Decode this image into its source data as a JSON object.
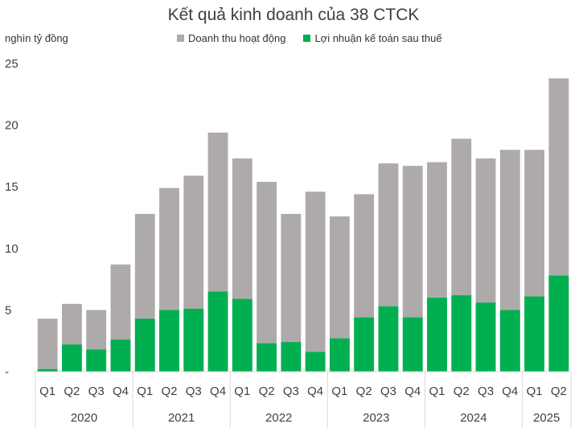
{
  "chart_data": {
    "type": "bar",
    "stacking": "overlay",
    "title": "Kết quả kinh doanh của 38 CTCK",
    "ylabel": "nghìn tỷ đồng",
    "ylim": [
      0,
      25
    ],
    "yticks": [
      "-",
      "5",
      "10",
      "15",
      "20",
      "25"
    ],
    "ytick_values": [
      0,
      5,
      10,
      15,
      20,
      25
    ],
    "grid": false,
    "legend_position": "top",
    "categories": [
      "Q1",
      "Q2",
      "Q3",
      "Q4",
      "Q1",
      "Q2",
      "Q3",
      "Q4",
      "Q1",
      "Q2",
      "Q3",
      "Q4",
      "Q1",
      "Q2",
      "Q3",
      "Q4",
      "Q1",
      "Q2",
      "Q3",
      "Q4",
      "Q1",
      "Q2"
    ],
    "groups": [
      {
        "label": "2020",
        "count": 4
      },
      {
        "label": "2021",
        "count": 4
      },
      {
        "label": "2022",
        "count": 4
      },
      {
        "label": "2023",
        "count": 4
      },
      {
        "label": "2024",
        "count": 4
      },
      {
        "label": "2025",
        "count": 2
      }
    ],
    "series": [
      {
        "name": "Doanh thu hoạt động",
        "color": "#aeaaaa",
        "values": [
          4.3,
          5.5,
          5.0,
          8.7,
          12.8,
          14.9,
          15.9,
          19.4,
          17.3,
          15.4,
          12.8,
          14.6,
          12.6,
          14.4,
          16.9,
          16.7,
          17.0,
          18.9,
          17.3,
          18.0,
          18.0,
          23.8
        ]
      },
      {
        "name": "Lợi nhuận kế toán sau thuế",
        "color": "#00b050",
        "values": [
          0.2,
          2.2,
          1.8,
          2.6,
          4.3,
          5.0,
          5.1,
          6.5,
          5.9,
          2.3,
          2.4,
          1.6,
          2.7,
          4.4,
          5.3,
          4.4,
          6.0,
          6.2,
          5.6,
          5.0,
          6.1,
          7.8
        ]
      }
    ]
  }
}
